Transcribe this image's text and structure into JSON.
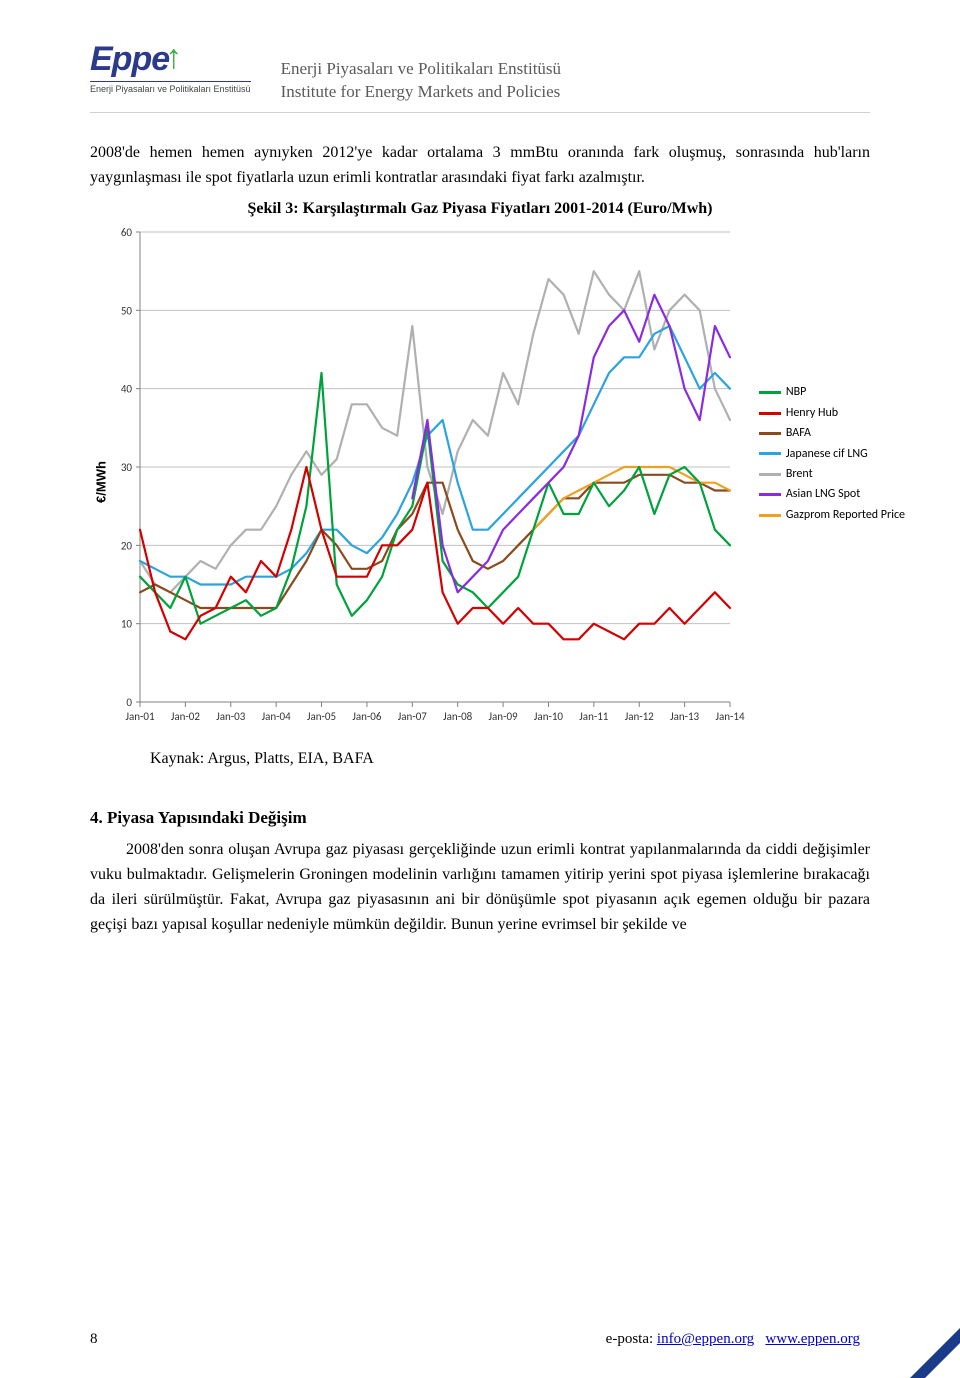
{
  "header": {
    "logo_text": "Eppe",
    "logo_subtitle": "Enerji Piyasaları ve Politikaları Enstitüsü",
    "title_line1": "Enerji Piyasaları ve Politikaları Enstitüsü",
    "title_line2": "Institute for Energy Markets and Policies"
  },
  "intro_paragraph": "2008'de hemen hemen aynıyken 2012'ye kadar ortalama 3 mmBtu oranında fark oluşmuş, sonrasında hub'ların yaygınlaşması ile spot fiyatlarla uzun erimli kontratlar arasındaki fiyat farkı azalmıştır.",
  "chart": {
    "title": "Şekil 3: Karşılaştırmalı Gaz Piyasa Fiyatları 2001-2014 (Euro/Mwh)",
    "type": "line",
    "ylabel": "€/MWh",
    "ylim": [
      0,
      60
    ],
    "ytick_step": 10,
    "xlabels": [
      "Jan-01",
      "Jan-02",
      "Jan-03",
      "Jan-04",
      "Jan-05",
      "Jan-06",
      "Jan-07",
      "Jan-08",
      "Jan-09",
      "Jan-10",
      "Jan-11",
      "Jan-12",
      "Jan-13",
      "Jan-14"
    ],
    "plot_bg": "#ffffff",
    "grid_color": "#c0c0c0",
    "axis_color": "#808080",
    "line_width": 2.2,
    "tick_fontsize": 11,
    "legend": [
      {
        "label": "NBP",
        "color": "#00a23c"
      },
      {
        "label": "Henry Hub",
        "color": "#d40000"
      },
      {
        "label": "BAFA",
        "color": "#8a4a1e"
      },
      {
        "label": "Japanese cif LNG",
        "color": "#2aa3e0"
      },
      {
        "label": "Brent",
        "color": "#b0b0b0"
      },
      {
        "label": "Asian LNG Spot",
        "color": "#8a2be2"
      },
      {
        "label": "Gazprom Reported Price",
        "color": "#f0a020"
      }
    ],
    "series": {
      "Brent": {
        "color": "#b0b0b0",
        "y": [
          18,
          15,
          14,
          16,
          18,
          17,
          20,
          22,
          22,
          25,
          29,
          32,
          29,
          31,
          38,
          38,
          35,
          34,
          48,
          30,
          24,
          32,
          36,
          34,
          42,
          38,
          47,
          54,
          52,
          47,
          55,
          52,
          50,
          55,
          45,
          50,
          52,
          50,
          40,
          36
        ]
      },
      "NBP": {
        "color": "#00a23c",
        "y": [
          16,
          14,
          12,
          16,
          10,
          11,
          12,
          13,
          11,
          12,
          17,
          25,
          42,
          15,
          11,
          13,
          16,
          22,
          25,
          35,
          18,
          15,
          14,
          12,
          14,
          16,
          22,
          28,
          24,
          24,
          28,
          25,
          27,
          30,
          24,
          29,
          30,
          28,
          22,
          20
        ]
      },
      "Henry Hub": {
        "color": "#d40000",
        "y": [
          22,
          14,
          9,
          8,
          11,
          12,
          16,
          14,
          18,
          16,
          22,
          30,
          22,
          16,
          16,
          16,
          20,
          20,
          22,
          28,
          14,
          10,
          12,
          12,
          10,
          12,
          10,
          10,
          8,
          8,
          10,
          9,
          8,
          10,
          10,
          12,
          10,
          12,
          14,
          12
        ]
      },
      "BAFA": {
        "color": "#8a4a1e",
        "y": [
          14,
          15,
          14,
          13,
          12,
          12,
          12,
          12,
          12,
          12,
          15,
          18,
          22,
          20,
          17,
          17,
          18,
          22,
          24,
          28,
          28,
          22,
          18,
          17,
          18,
          20,
          22,
          24,
          26,
          26,
          28,
          28,
          28,
          29,
          29,
          29,
          28,
          28,
          27,
          27
        ]
      },
      "Japanese cif LNG": {
        "color": "#2aa3e0",
        "y": [
          18,
          17,
          16,
          16,
          15,
          15,
          15,
          16,
          16,
          16,
          17,
          19,
          22,
          22,
          20,
          19,
          21,
          24,
          28,
          34,
          36,
          28,
          22,
          22,
          24,
          26,
          28,
          30,
          32,
          34,
          38,
          42,
          44,
          44,
          47,
          48,
          44,
          40,
          42,
          40
        ]
      },
      "Asian LNG Spot": {
        "color": "#8a2be2",
        "y": [
          null,
          null,
          null,
          null,
          null,
          null,
          null,
          null,
          null,
          null,
          null,
          null,
          null,
          null,
          null,
          null,
          null,
          null,
          26,
          36,
          20,
          14,
          16,
          18,
          22,
          24,
          26,
          28,
          30,
          34,
          44,
          48,
          50,
          46,
          52,
          48,
          40,
          36,
          48,
          44
        ]
      },
      "Gazprom Reported Price": {
        "color": "#f0a020",
        "y": [
          null,
          null,
          null,
          null,
          null,
          null,
          null,
          null,
          null,
          null,
          null,
          null,
          null,
          null,
          null,
          null,
          null,
          null,
          null,
          null,
          null,
          null,
          null,
          null,
          null,
          null,
          22,
          24,
          26,
          27,
          28,
          29,
          30,
          30,
          30,
          30,
          29,
          28,
          28,
          27
        ]
      }
    },
    "source_label": "Kaynak: Argus, Platts, EIA, BAFA"
  },
  "section4": {
    "heading": "4. Piyasa Yapısındaki Değişim",
    "paragraph": "2008'den sonra oluşan Avrupa gaz piyasası gerçekliğinde uzun erimli kontrat yapılanmalarında da ciddi değişimler vuku bulmaktadır. Gelişmelerin Groningen modelinin varlığını tamamen yitirip yerini spot piyasa işlemlerine bırakacağı da ileri sürülmüştür. Fakat, Avrupa gaz piyasasının ani bir dönüşümle spot piyasanın açık egemen olduğu bir pazara geçişi bazı yapısal koşullar nedeniyle mümkün değildir. Bunun yerine evrimsel bir şekilde ve"
  },
  "footer": {
    "page_number": "8",
    "email_label": "e-posta:",
    "email": "info@eppen.org",
    "site": "www.eppen.org"
  }
}
